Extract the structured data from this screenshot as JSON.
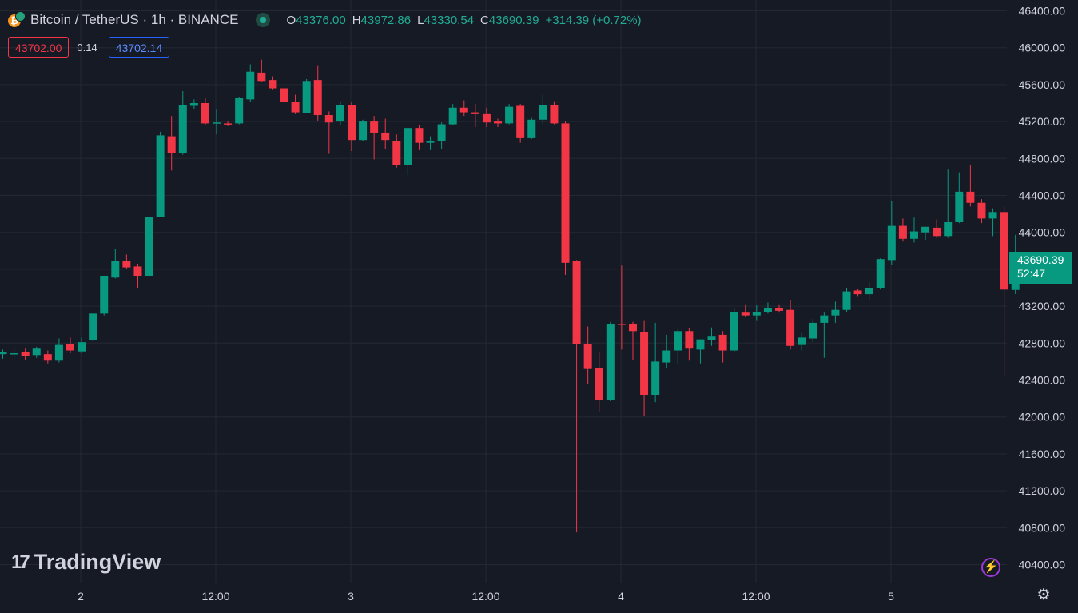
{
  "header": {
    "symbol_title": "Bitcoin / TetherUS · 1h · BINANCE",
    "ohlc": [
      {
        "key": "O",
        "value": "43376.00"
      },
      {
        "key": "H",
        "value": "43972.86"
      },
      {
        "key": "L",
        "value": "43330.54"
      },
      {
        "key": "C",
        "value": "43690.39"
      }
    ],
    "change": "+314.39 (+0.72%)"
  },
  "trade": {
    "sell_price": "43702.00",
    "spread": "0.14",
    "buy_price": "43702.14"
  },
  "last_price": {
    "value": "43690.39",
    "countdown": "52:47"
  },
  "watermark": "TradingView",
  "icons": {
    "coin": "bitcoin-tether-icon",
    "visibility": "eye-icon",
    "replay": "lightning-icon",
    "settings": "gear-icon"
  },
  "colors": {
    "background": "#161a25",
    "up": "#089981",
    "down": "#f23645",
    "grid": "#242833",
    "text": "#d1d4dc"
  },
  "chart_data": {
    "type": "candlestick",
    "interval": "1h",
    "y_axis_ticks": [
      "46400.00",
      "46000.00",
      "45600.00",
      "45200.00",
      "44800.00",
      "44400.00",
      "44000.00",
      "43600.00",
      "43200.00",
      "42800.00",
      "42400.00",
      "42000.00",
      "41600.00",
      "41200.00",
      "40800.00",
      "40400.00"
    ],
    "x_axis_ticks": [
      "2",
      "12:00",
      "3",
      "12:00",
      "4",
      "12:00",
      "5"
    ],
    "ylim": [
      40280,
      46480
    ],
    "grid": true,
    "candles": [
      {
        "o": 42680,
        "h": 42730,
        "l": 42630,
        "c": 42700
      },
      {
        "o": 42690,
        "h": 42760,
        "l": 42640,
        "c": 42690
      },
      {
        "o": 42700,
        "h": 42740,
        "l": 42620,
        "c": 42660
      },
      {
        "o": 42670,
        "h": 42760,
        "l": 42640,
        "c": 42740
      },
      {
        "o": 42680,
        "h": 42720,
        "l": 42580,
        "c": 42610
      },
      {
        "o": 42610,
        "h": 42850,
        "l": 42590,
        "c": 42780
      },
      {
        "o": 42790,
        "h": 42860,
        "l": 42690,
        "c": 42720
      },
      {
        "o": 42710,
        "h": 42860,
        "l": 42690,
        "c": 42810
      },
      {
        "o": 42830,
        "h": 43110,
        "l": 42820,
        "c": 43120
      },
      {
        "o": 43120,
        "h": 43530,
        "l": 43100,
        "c": 43530
      },
      {
        "o": 43510,
        "h": 43820,
        "l": 43500,
        "c": 43690
      },
      {
        "o": 43690,
        "h": 43760,
        "l": 43600,
        "c": 43620
      },
      {
        "o": 43630,
        "h": 43660,
        "l": 43400,
        "c": 43530
      },
      {
        "o": 43530,
        "h": 44180,
        "l": 43520,
        "c": 44170
      },
      {
        "o": 44170,
        "h": 45090,
        "l": 44170,
        "c": 45050
      },
      {
        "o": 45040,
        "h": 45260,
        "l": 44670,
        "c": 44860
      },
      {
        "o": 44860,
        "h": 45530,
        "l": 44840,
        "c": 45380
      },
      {
        "o": 45370,
        "h": 45440,
        "l": 45340,
        "c": 45400
      },
      {
        "o": 45400,
        "h": 45460,
        "l": 45160,
        "c": 45180
      },
      {
        "o": 45180,
        "h": 45330,
        "l": 45060,
        "c": 45190
      },
      {
        "o": 45180,
        "h": 45200,
        "l": 45150,
        "c": 45170
      },
      {
        "o": 45180,
        "h": 45470,
        "l": 45170,
        "c": 45460
      },
      {
        "o": 45440,
        "h": 45820,
        "l": 45410,
        "c": 45740
      },
      {
        "o": 45730,
        "h": 45870,
        "l": 45630,
        "c": 45640
      },
      {
        "o": 45650,
        "h": 45690,
        "l": 45550,
        "c": 45560
      },
      {
        "o": 45560,
        "h": 45620,
        "l": 45230,
        "c": 45410
      },
      {
        "o": 45410,
        "h": 45490,
        "l": 45280,
        "c": 45300
      },
      {
        "o": 45290,
        "h": 45660,
        "l": 45290,
        "c": 45640
      },
      {
        "o": 45650,
        "h": 45810,
        "l": 45210,
        "c": 45270
      },
      {
        "o": 45270,
        "h": 45310,
        "l": 44850,
        "c": 45190
      },
      {
        "o": 45200,
        "h": 45420,
        "l": 45160,
        "c": 45380
      },
      {
        "o": 45380,
        "h": 45410,
        "l": 44880,
        "c": 45000
      },
      {
        "o": 45000,
        "h": 45220,
        "l": 44990,
        "c": 45200
      },
      {
        "o": 45200,
        "h": 45260,
        "l": 44790,
        "c": 45080
      },
      {
        "o": 45080,
        "h": 45230,
        "l": 44900,
        "c": 45000
      },
      {
        "o": 44990,
        "h": 45060,
        "l": 44700,
        "c": 44730
      },
      {
        "o": 44730,
        "h": 45130,
        "l": 44620,
        "c": 45130
      },
      {
        "o": 45130,
        "h": 45160,
        "l": 44890,
        "c": 44970
      },
      {
        "o": 44970,
        "h": 45040,
        "l": 44890,
        "c": 44990
      },
      {
        "o": 44990,
        "h": 45190,
        "l": 44900,
        "c": 45170
      },
      {
        "o": 45170,
        "h": 45390,
        "l": 45160,
        "c": 45350
      },
      {
        "o": 45350,
        "h": 45430,
        "l": 45260,
        "c": 45300
      },
      {
        "o": 45300,
        "h": 45390,
        "l": 45140,
        "c": 45280
      },
      {
        "o": 45280,
        "h": 45350,
        "l": 45140,
        "c": 45190
      },
      {
        "o": 45200,
        "h": 45230,
        "l": 45140,
        "c": 45180
      },
      {
        "o": 45180,
        "h": 45390,
        "l": 45170,
        "c": 45360
      },
      {
        "o": 45370,
        "h": 45390,
        "l": 44970,
        "c": 45020
      },
      {
        "o": 45020,
        "h": 45240,
        "l": 45010,
        "c": 45220
      },
      {
        "o": 45220,
        "h": 45490,
        "l": 45170,
        "c": 45380
      },
      {
        "o": 45380,
        "h": 45420,
        "l": 45170,
        "c": 45180
      },
      {
        "o": 45180,
        "h": 45200,
        "l": 43540,
        "c": 43670
      },
      {
        "o": 43690,
        "h": 43700,
        "l": 40750,
        "c": 42790
      },
      {
        "o": 42790,
        "h": 42980,
        "l": 42360,
        "c": 42520
      },
      {
        "o": 42530,
        "h": 42700,
        "l": 42060,
        "c": 42180
      },
      {
        "o": 42180,
        "h": 43030,
        "l": 42170,
        "c": 43010
      },
      {
        "o": 43010,
        "h": 43640,
        "l": 42730,
        "c": 43000
      },
      {
        "o": 43010,
        "h": 43030,
        "l": 42620,
        "c": 42930
      },
      {
        "o": 42920,
        "h": 43040,
        "l": 42010,
        "c": 42240
      },
      {
        "o": 42240,
        "h": 43020,
        "l": 42160,
        "c": 42600
      },
      {
        "o": 42590,
        "h": 42890,
        "l": 42530,
        "c": 42720
      },
      {
        "o": 42720,
        "h": 42950,
        "l": 42570,
        "c": 42930
      },
      {
        "o": 42930,
        "h": 42960,
        "l": 42610,
        "c": 42740
      },
      {
        "o": 42730,
        "h": 42840,
        "l": 42580,
        "c": 42840
      },
      {
        "o": 42830,
        "h": 42970,
        "l": 42770,
        "c": 42870
      },
      {
        "o": 42890,
        "h": 42930,
        "l": 42590,
        "c": 42720
      },
      {
        "o": 42720,
        "h": 43180,
        "l": 42700,
        "c": 43140
      },
      {
        "o": 43130,
        "h": 43220,
        "l": 43080,
        "c": 43100
      },
      {
        "o": 43100,
        "h": 43210,
        "l": 43040,
        "c": 43140
      },
      {
        "o": 43140,
        "h": 43240,
        "l": 43120,
        "c": 43180
      },
      {
        "o": 43180,
        "h": 43220,
        "l": 43130,
        "c": 43150
      },
      {
        "o": 43160,
        "h": 43270,
        "l": 42730,
        "c": 42770
      },
      {
        "o": 42780,
        "h": 42910,
        "l": 42720,
        "c": 42860
      },
      {
        "o": 42850,
        "h": 43060,
        "l": 42810,
        "c": 43020
      },
      {
        "o": 43020,
        "h": 43130,
        "l": 42640,
        "c": 43100
      },
      {
        "o": 43100,
        "h": 43250,
        "l": 43020,
        "c": 43160
      },
      {
        "o": 43160,
        "h": 43400,
        "l": 43140,
        "c": 43360
      },
      {
        "o": 43370,
        "h": 43390,
        "l": 43310,
        "c": 43330
      },
      {
        "o": 43330,
        "h": 43460,
        "l": 43270,
        "c": 43400
      },
      {
        "o": 43400,
        "h": 43720,
        "l": 43380,
        "c": 43710
      },
      {
        "o": 43700,
        "h": 44340,
        "l": 43650,
        "c": 44070
      },
      {
        "o": 44070,
        "h": 44150,
        "l": 43900,
        "c": 43930
      },
      {
        "o": 43930,
        "h": 44160,
        "l": 43890,
        "c": 44010
      },
      {
        "o": 44000,
        "h": 44060,
        "l": 43920,
        "c": 44060
      },
      {
        "o": 44050,
        "h": 44140,
        "l": 43940,
        "c": 43960
      },
      {
        "o": 43960,
        "h": 44680,
        "l": 43940,
        "c": 44110
      },
      {
        "o": 44110,
        "h": 44650,
        "l": 44100,
        "c": 44440
      },
      {
        "o": 44440,
        "h": 44730,
        "l": 44280,
        "c": 44320
      },
      {
        "o": 44320,
        "h": 44360,
        "l": 44100,
        "c": 44150
      },
      {
        "o": 44150,
        "h": 44260,
        "l": 43960,
        "c": 44220
      },
      {
        "o": 44220,
        "h": 44280,
        "l": 42450,
        "c": 43380
      },
      {
        "o": 43376,
        "h": 43972.86,
        "l": 43330.54,
        "c": 43690.39
      }
    ]
  }
}
